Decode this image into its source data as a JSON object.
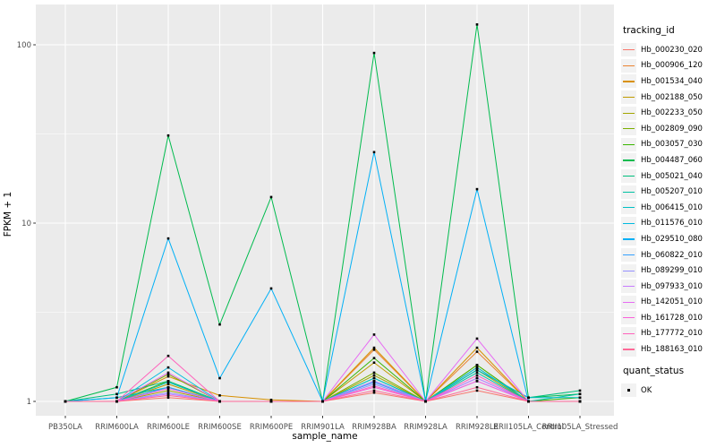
{
  "chart_data": {
    "type": "line",
    "title": "",
    "xlabel": "sample_name",
    "ylabel": "FPKM + 1",
    "y_scale": "log10",
    "y_ticks": [
      1,
      10,
      100
    ],
    "ylim": [
      0.83,
      165
    ],
    "grid": "white-major-minor-on-gray-panel",
    "legend_position": "right",
    "point_marker": "black-square",
    "categories": [
      "PB350LA",
      "RRIM600LA",
      "RRIM600LE",
      "RRIM600SE",
      "RRIM600PE",
      "RRIM901LA",
      "RRIM928BA",
      "RRIM928LA",
      "RRIM928LE",
      "RRII105LA_Control",
      "RRII105LA_Stressed"
    ],
    "series": [
      {
        "name": "Hb_000230_020",
        "color": "#F8766D",
        "values": [
          1,
          1,
          1.05,
          1,
          1,
          1,
          1.12,
          1,
          1.15,
          1,
          1
        ]
      },
      {
        "name": "Hb_000906_120",
        "color": "#EA8331",
        "values": [
          1,
          1,
          1.2,
          1,
          1,
          1,
          1.95,
          1,
          1.9,
          1,
          1
        ]
      },
      {
        "name": "Hb_001534_040",
        "color": "#D89000",
        "values": [
          1,
          1,
          1.38,
          1.08,
          1.02,
          1,
          2.0,
          1,
          2.0,
          1,
          1
        ]
      },
      {
        "name": "Hb_002188_050",
        "color": "#C09B00",
        "values": [
          1,
          1,
          1.25,
          1,
          1,
          1,
          1.65,
          1,
          1.6,
          1,
          1
        ]
      },
      {
        "name": "Hb_002233_050",
        "color": "#A3A500",
        "values": [
          1,
          1,
          1.15,
          1,
          1,
          1,
          1.4,
          1,
          1.5,
          1,
          1
        ]
      },
      {
        "name": "Hb_002809_090",
        "color": "#7CAE00",
        "values": [
          1,
          1,
          1.42,
          1,
          1,
          1,
          1.45,
          1,
          1.55,
          1,
          1
        ]
      },
      {
        "name": "Hb_003057_030",
        "color": "#39B600",
        "values": [
          1,
          1,
          1.3,
          1,
          1,
          1,
          1.75,
          1,
          1.6,
          1,
          1.05
        ]
      },
      {
        "name": "Hb_004487_060",
        "color": "#00BB4E",
        "values": [
          1,
          1.2,
          31,
          2.7,
          14,
          1,
          90,
          1,
          130,
          1.05,
          1.1
        ]
      },
      {
        "name": "Hb_005021_040",
        "color": "#00BF7D",
        "values": [
          1,
          1.1,
          1.3,
          1,
          1,
          1,
          1.35,
          1,
          1.5,
          1.05,
          1.15
        ]
      },
      {
        "name": "Hb_005207_010",
        "color": "#00C1A3",
        "values": [
          1,
          1.05,
          1.2,
          1,
          1,
          1,
          1.3,
          1,
          1.45,
          1,
          1.1
        ]
      },
      {
        "name": "Hb_006415_010",
        "color": "#00BFC4",
        "values": [
          1,
          1,
          1.28,
          1,
          1,
          1,
          1.35,
          1,
          1.5,
          1.05,
          1.05
        ]
      },
      {
        "name": "Hb_011576_010",
        "color": "#00BAE0",
        "values": [
          1,
          1,
          1.55,
          1,
          1,
          1,
          1.3,
          1,
          1.55,
          1,
          1
        ]
      },
      {
        "name": "Hb_029510_080",
        "color": "#00B0F6",
        "values": [
          1,
          1.05,
          8.2,
          1.35,
          4.3,
          1,
          25,
          1,
          15.5,
          1,
          1
        ]
      },
      {
        "name": "Hb_060822_010",
        "color": "#35A2FF",
        "values": [
          1,
          1,
          1.2,
          1,
          1,
          1,
          1.28,
          1,
          1.35,
          1,
          1
        ]
      },
      {
        "name": "Hb_089299_010",
        "color": "#9590FF",
        "values": [
          1,
          1,
          1.12,
          1,
          1,
          1,
          1.25,
          1,
          1.3,
          1,
          1
        ]
      },
      {
        "name": "Hb_097933_010",
        "color": "#C77CFF",
        "values": [
          1,
          1,
          1.1,
          1,
          1,
          1,
          1.3,
          1,
          1.35,
          1,
          1
        ]
      },
      {
        "name": "Hb_142051_010",
        "color": "#E76BF3",
        "values": [
          1,
          1,
          1.45,
          1,
          1,
          1,
          2.37,
          1,
          2.25,
          1,
          1
        ]
      },
      {
        "name": "Hb_161728_010",
        "color": "#FA62DB",
        "values": [
          1,
          1,
          1.18,
          1,
          1,
          1,
          1.2,
          1,
          1.3,
          1,
          1
        ]
      },
      {
        "name": "Hb_177772_010",
        "color": "#FF62BC",
        "values": [
          1,
          1,
          1.8,
          1,
          1,
          1,
          1.22,
          1,
          1.4,
          1,
          1
        ]
      },
      {
        "name": "Hb_188163_010",
        "color": "#FF6A98",
        "values": [
          1,
          1,
          1.08,
          1,
          1,
          1,
          1.15,
          1,
          1.2,
          1,
          1
        ]
      }
    ],
    "legend": {
      "color_title": "tracking_id",
      "shape_title": "quant_status",
      "shape_items": [
        {
          "label": "OK",
          "marker": "black-square"
        }
      ]
    },
    "style_colors": {
      "panel_bg": "#EBEBEB",
      "grid": "#FFFFFF",
      "axis_text": "#4D4D4D",
      "tick_mark": "#333333",
      "legend_key_bg": "#F2F2F2"
    }
  }
}
